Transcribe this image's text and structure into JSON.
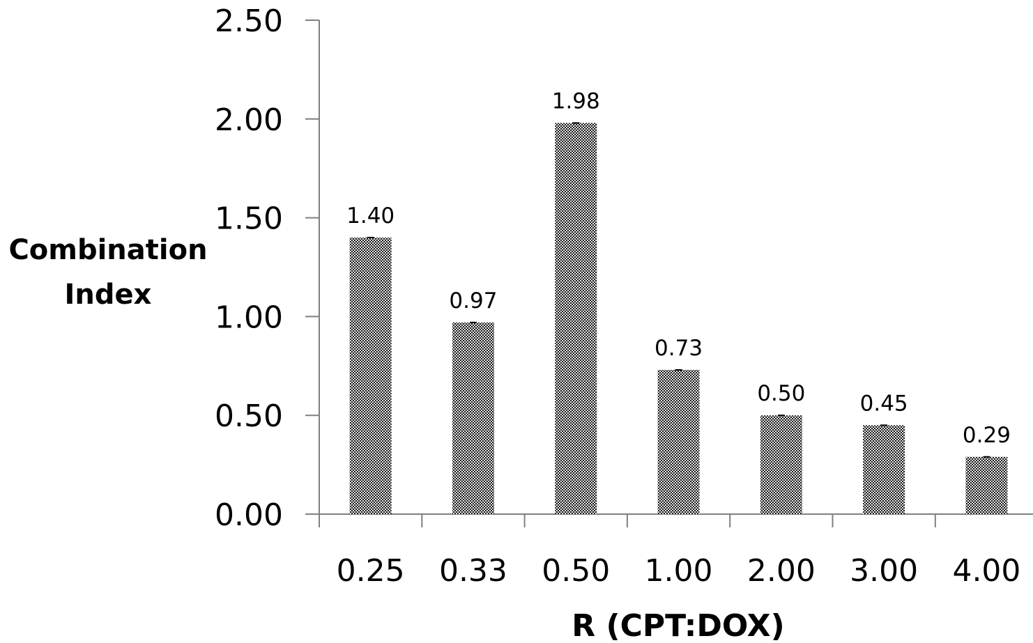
{
  "chart_data": {
    "type": "bar",
    "xlabel": "R (CPT:DOX)",
    "ylabel_lines": [
      "Combination",
      "Index"
    ],
    "categories": [
      "0.25",
      "0.33",
      "0.50",
      "1.00",
      "2.00",
      "3.00",
      "4.00"
    ],
    "values": [
      1.4,
      0.97,
      1.98,
      0.73,
      0.5,
      0.45,
      0.29
    ],
    "data_labels": [
      "1.40",
      "0.97",
      "1.98",
      "0.73",
      "0.50",
      "0.45",
      "0.29"
    ],
    "ylim": [
      0,
      2.5
    ],
    "yticks": [
      "0.00",
      "0.50",
      "1.00",
      "1.50",
      "2.00",
      "2.50"
    ],
    "ytick_values": [
      0,
      0.5,
      1.0,
      1.5,
      2.0,
      2.5
    ],
    "grid": false,
    "legend": "none",
    "bar_fill": "checkered dark gray",
    "colors": {
      "axis": "#7f7f7f",
      "bar_dark": "#1a1a1a",
      "bar_light": "#e6e6e6"
    }
  }
}
